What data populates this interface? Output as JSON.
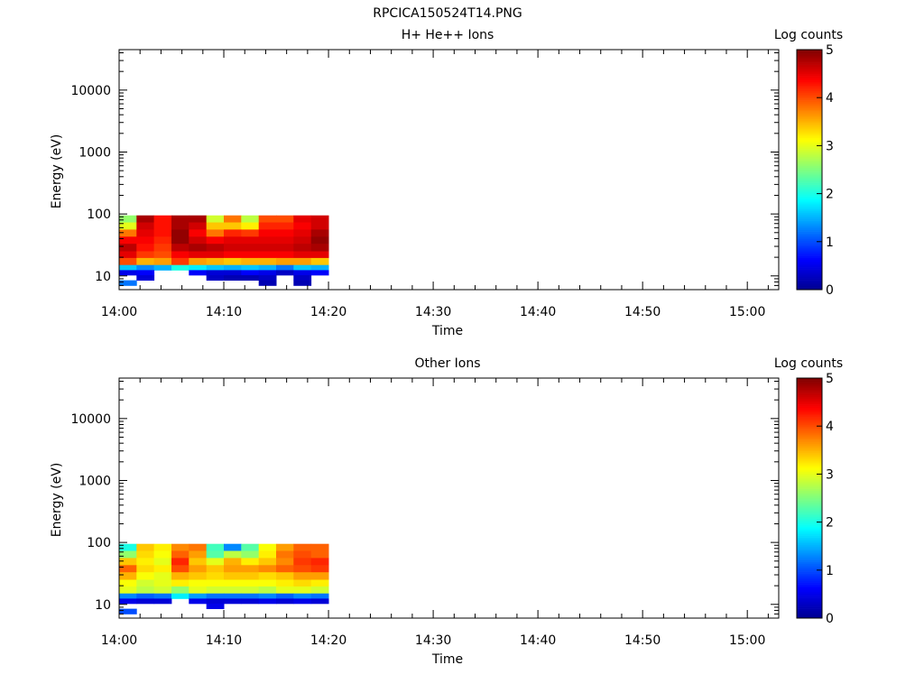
{
  "figure_title": "RPCICA150524T14.PNG",
  "colors": {
    "colormap": [
      "#00008f",
      "#0000ff",
      "#007fff",
      "#00ffff",
      "#7fff7f",
      "#ffff00",
      "#ff7f00",
      "#ff0000",
      "#7f0000"
    ]
  },
  "chart_data": [
    {
      "type": "heatmap",
      "title": "H+ He++ Ions",
      "xlabel": "Time",
      "ylabel": "Energy (eV)",
      "x_ticks": [
        "14:00",
        "14:10",
        "14:20",
        "14:30",
        "14:40",
        "14:50",
        "15:00"
      ],
      "x_range_min": [
        0,
        63
      ],
      "y_ticks": [
        "10",
        "100",
        "1000",
        "10000"
      ],
      "y_range": [
        6,
        45000
      ],
      "y_scale": "log",
      "colorbar": {
        "label": "Log counts",
        "ticks": [
          "0",
          "1",
          "2",
          "3",
          "4",
          "5"
        ],
        "range": [
          0,
          5
        ]
      },
      "time_columns_min": [
        0.0,
        1.66,
        3.33,
        5.0,
        6.66,
        8.33,
        10.0,
        11.66,
        13.33,
        15.0,
        16.66,
        18.33,
        20.0
      ],
      "energy_edges_ev": [
        95,
        73,
        56,
        43,
        33,
        25,
        19.5,
        15,
        12.4,
        10.3,
        8.5,
        7
      ],
      "log_counts": [
        [
          2.6,
          4.8,
          4.3,
          4.8,
          4.8,
          2.9,
          3.8,
          2.8,
          4.0,
          4.0,
          4.5,
          4.6
        ],
        [
          3.0,
          4.6,
          4.3,
          4.8,
          4.6,
          3.4,
          3.4,
          3.2,
          4.2,
          4.2,
          4.4,
          4.6
        ],
        [
          3.8,
          4.5,
          4.3,
          4.9,
          4.4,
          3.8,
          4.2,
          4.1,
          4.4,
          4.4,
          4.5,
          4.8
        ],
        [
          4.4,
          4.4,
          4.2,
          4.9,
          4.6,
          4.4,
          4.5,
          4.5,
          4.5,
          4.5,
          4.6,
          4.9
        ],
        [
          4.7,
          4.3,
          4.1,
          4.7,
          4.8,
          4.7,
          4.6,
          4.6,
          4.6,
          4.6,
          4.7,
          4.8
        ],
        [
          4.5,
          4.1,
          4.0,
          4.4,
          4.5,
          4.5,
          4.4,
          4.4,
          4.4,
          4.4,
          4.5,
          4.5
        ],
        [
          4.0,
          3.5,
          3.6,
          4.1,
          3.6,
          3.5,
          3.4,
          3.5,
          3.5,
          3.6,
          3.6,
          3.4
        ],
        [
          1.6,
          1.3,
          1.5,
          2.0,
          1.8,
          1.6,
          1.5,
          1.6,
          1.5,
          1.2,
          1.6,
          1.5
        ],
        [
          0.5,
          0.6,
          null,
          null,
          0.6,
          0.4,
          0.4,
          0.6,
          0.5,
          0.3,
          0.5,
          0.6
        ],
        [
          null,
          0.4,
          null,
          null,
          null,
          0.3,
          0.2,
          0.2,
          0.3,
          null,
          0.3,
          null
        ],
        [
          1.2,
          null,
          null,
          null,
          null,
          null,
          null,
          null,
          0.2,
          null,
          0.2,
          null
        ]
      ]
    },
    {
      "type": "heatmap",
      "title": "Other Ions",
      "xlabel": "Time",
      "ylabel": "Energy (eV)",
      "x_ticks": [
        "14:00",
        "14:10",
        "14:20",
        "14:30",
        "14:40",
        "14:50",
        "15:00"
      ],
      "x_range_min": [
        0,
        63
      ],
      "y_ticks": [
        "10",
        "100",
        "1000",
        "10000"
      ],
      "y_range": [
        6,
        45000
      ],
      "y_scale": "log",
      "colorbar": {
        "label": "Log counts",
        "ticks": [
          "0",
          "1",
          "2",
          "3",
          "4",
          "5"
        ],
        "range": [
          0,
          5
        ]
      },
      "time_columns_min": [
        0.0,
        1.66,
        3.33,
        5.0,
        6.66,
        8.33,
        10.0,
        11.66,
        13.33,
        15.0,
        16.66,
        18.33,
        20.0
      ],
      "energy_edges_ev": [
        95,
        73,
        56,
        43,
        33,
        25,
        19.5,
        15,
        12.4,
        10.3,
        8.5,
        7
      ],
      "log_counts": [
        [
          2.0,
          3.4,
          3.2,
          3.7,
          3.8,
          2.2,
          1.3,
          2.3,
          3.1,
          3.6,
          3.9,
          3.9
        ],
        [
          2.6,
          3.3,
          3.1,
          3.9,
          3.6,
          2.3,
          2.8,
          2.6,
          3.2,
          3.8,
          4.0,
          3.9
        ],
        [
          3.4,
          3.2,
          3.0,
          4.2,
          3.4,
          3.0,
          3.5,
          3.2,
          3.4,
          3.7,
          4.1,
          4.2
        ],
        [
          3.9,
          3.3,
          3.2,
          4.0,
          3.6,
          3.4,
          3.6,
          3.6,
          3.7,
          3.9,
          4.0,
          4.1
        ],
        [
          3.5,
          3.1,
          3.0,
          3.5,
          3.4,
          3.3,
          3.4,
          3.4,
          3.3,
          3.4,
          3.6,
          3.6
        ],
        [
          3.1,
          2.9,
          3.0,
          3.2,
          3.1,
          3.1,
          3.1,
          3.1,
          3.1,
          3.2,
          3.3,
          3.2
        ],
        [
          3.0,
          2.8,
          2.9,
          2.6,
          3.0,
          2.9,
          2.9,
          2.9,
          2.8,
          3.0,
          3.0,
          2.9
        ],
        [
          1.3,
          1.1,
          1.2,
          1.8,
          1.4,
          1.2,
          1.2,
          1.2,
          1.3,
          1.1,
          1.3,
          1.2
        ],
        [
          0.5,
          0.4,
          0.4,
          null,
          0.5,
          0.4,
          0.4,
          0.4,
          0.5,
          0.4,
          0.5,
          0.4
        ],
        [
          null,
          null,
          null,
          null,
          null,
          0.5,
          null,
          null,
          null,
          null,
          null,
          null
        ],
        [
          1.0,
          null,
          null,
          null,
          null,
          null,
          null,
          null,
          null,
          null,
          null,
          null
        ]
      ]
    }
  ]
}
